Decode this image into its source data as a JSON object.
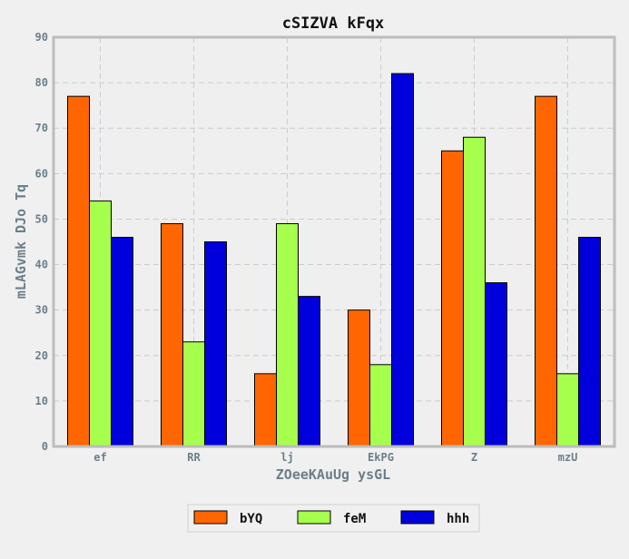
{
  "chart_data": {
    "type": "bar",
    "title": "cSIZVA  kFqx",
    "xlabel": "ZOeeKAuUg ysGL",
    "ylabel": "mLAGvmk DJo Tq",
    "categories": [
      "ef",
      "RR",
      "lj",
      "EkPG",
      "Z",
      "mzU"
    ],
    "series": [
      {
        "name": "bYQ",
        "color": "#ff6600",
        "values": [
          77,
          49,
          16,
          30,
          65,
          77
        ]
      },
      {
        "name": "feM",
        "color": "#a6ff4d",
        "values": [
          54,
          23,
          49,
          18,
          68,
          16
        ]
      },
      {
        "name": "hhh",
        "color": "#0000dd",
        "values": [
          46,
          45,
          33,
          82,
          36,
          46
        ]
      }
    ],
    "ylim": [
      0,
      90
    ],
    "yticks": [
      0,
      10,
      20,
      30,
      40,
      50,
      60,
      70,
      80,
      90
    ],
    "grid": true,
    "legend_position": "bottom-center"
  }
}
